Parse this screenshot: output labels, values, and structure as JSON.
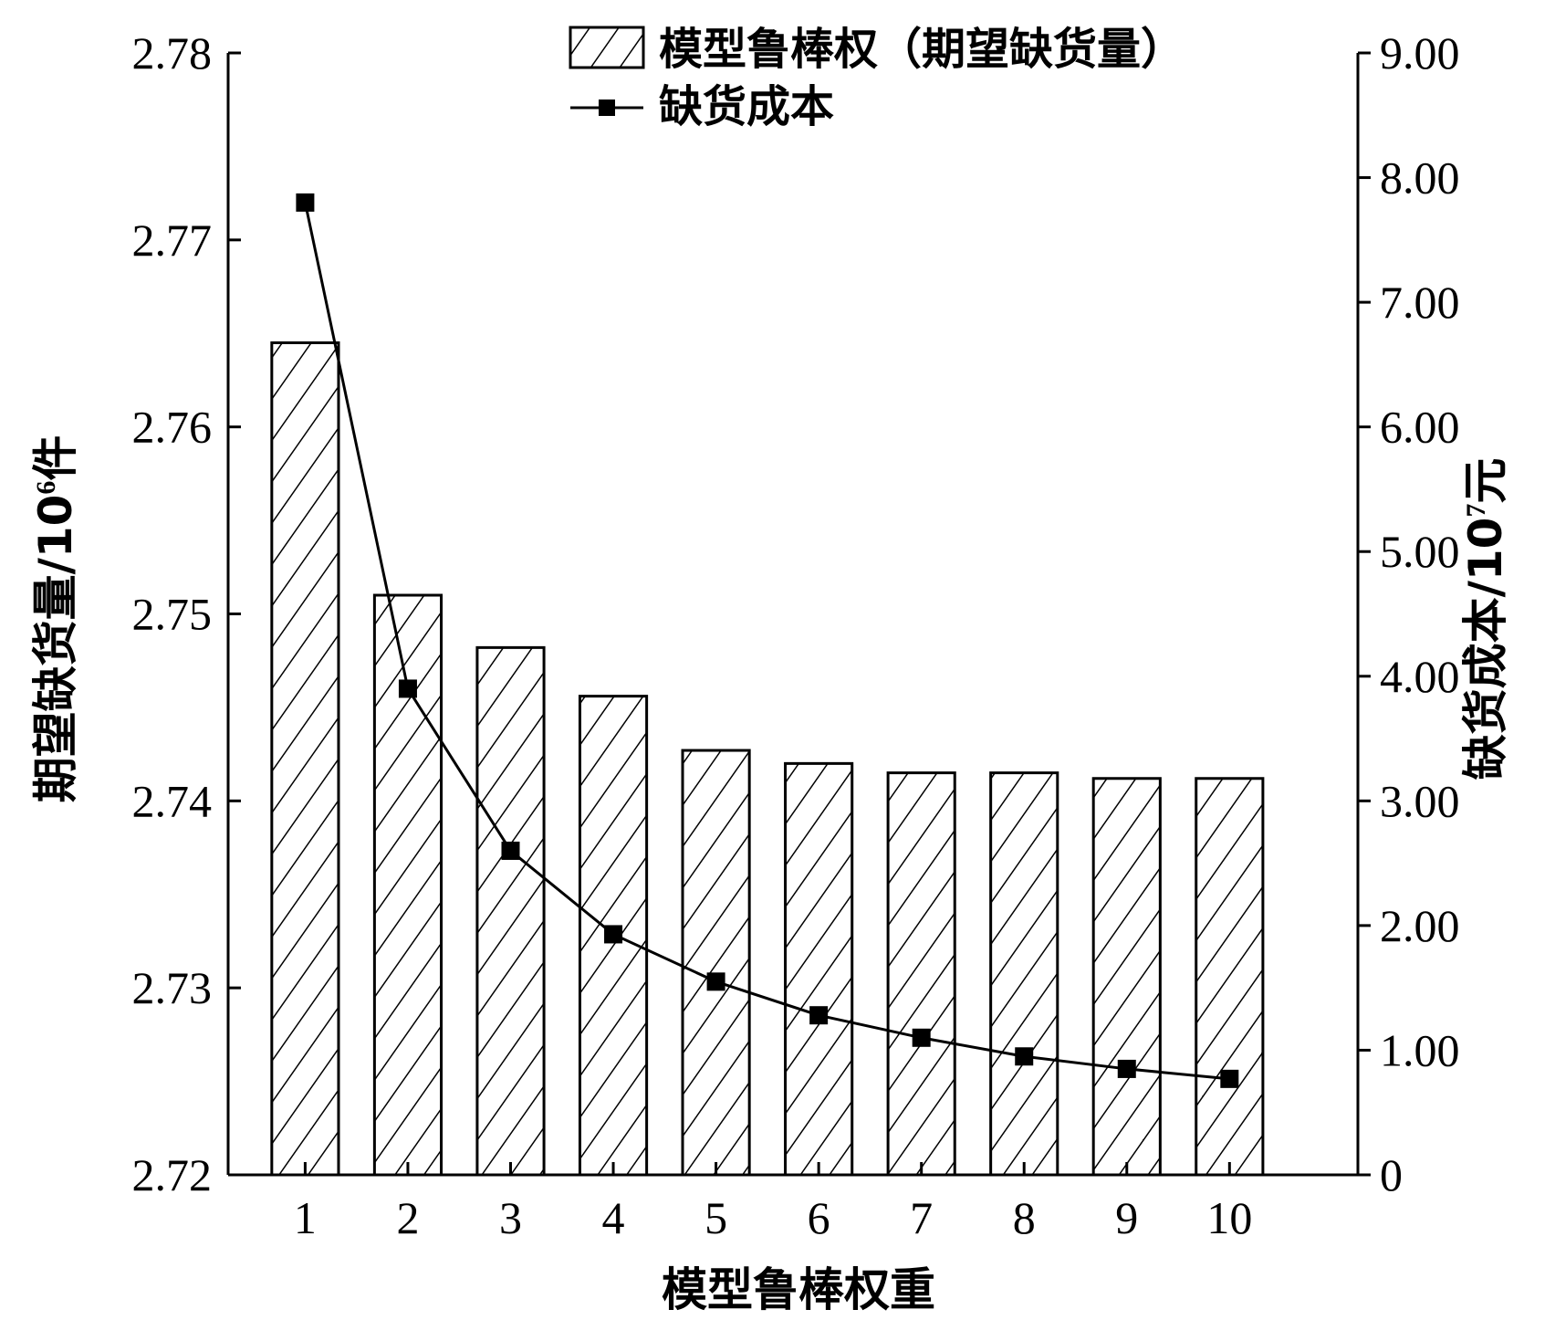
{
  "chart_data": {
    "type": "bar",
    "categories": [
      "1",
      "2",
      "3",
      "4",
      "5",
      "6",
      "7",
      "8",
      "9",
      "10"
    ],
    "xlabel": "模型鲁棒权重",
    "ylabel_left": {
      "main": "期望缺货量/10",
      "sup": "6",
      "unit": "件"
    },
    "ylabel_right": {
      "main": "缺货成本/10",
      "sup": "7",
      "unit": "元"
    },
    "ylim_left": [
      2.72,
      2.78
    ],
    "ylim_right": [
      0,
      9
    ],
    "yticks_left": [
      "2.72",
      "2.73",
      "2.74",
      "2.75",
      "2.76",
      "2.77",
      "2.78"
    ],
    "yticks_right": [
      "0",
      "1.00",
      "2.00",
      "3.00",
      "4.00",
      "5.00",
      "6.00",
      "7.00",
      "8.00",
      "9.00"
    ],
    "series": [
      {
        "name": "模型鲁棒权（期望缺货量）",
        "type": "bar",
        "axis": "left",
        "values": [
          2.7645,
          2.751,
          2.7482,
          2.7456,
          2.7427,
          2.742,
          2.7415,
          2.7415,
          2.7412,
          2.7412
        ]
      },
      {
        "name": "缺货成本",
        "type": "line",
        "axis": "right",
        "marker": "square",
        "values": [
          7.8,
          3.9,
          2.6,
          1.93,
          1.55,
          1.28,
          1.1,
          0.95,
          0.85,
          0.77
        ]
      }
    ],
    "legend_position": "top-center",
    "grid": false
  }
}
